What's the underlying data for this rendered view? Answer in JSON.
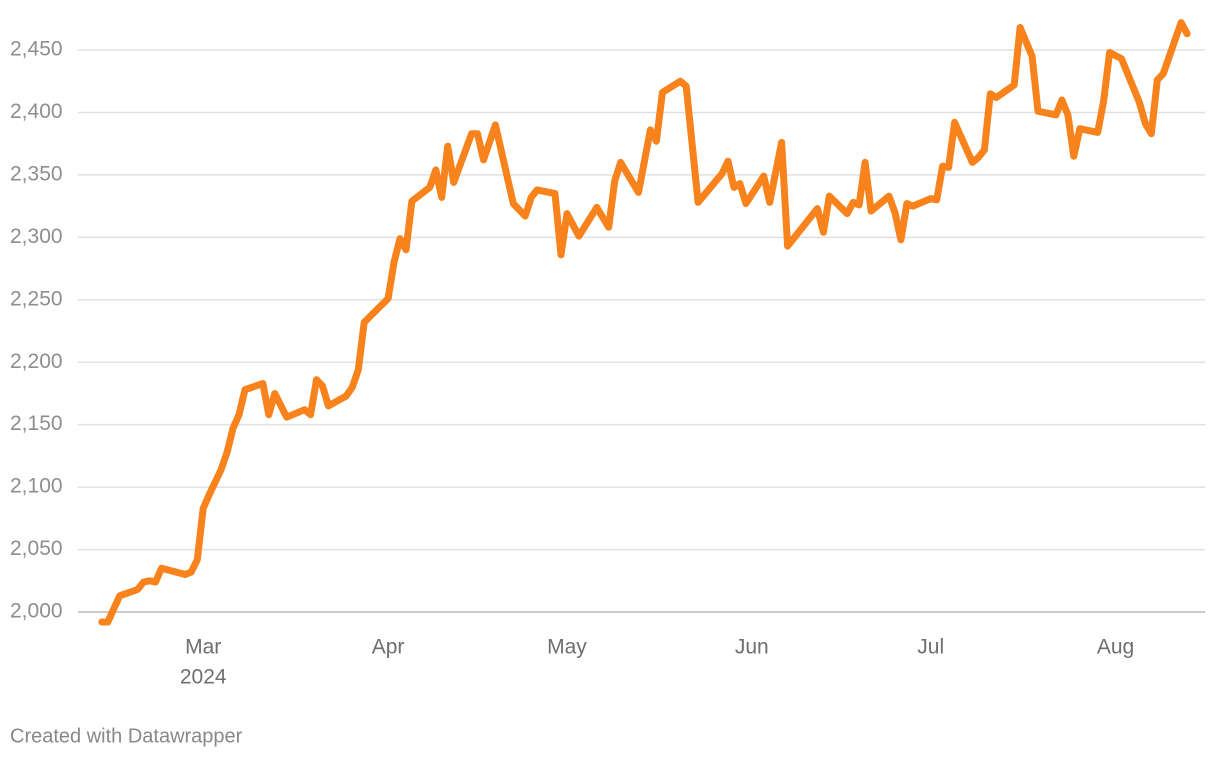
{
  "chart_data": {
    "type": "line",
    "x": [
      44,
      45,
      47,
      50,
      51,
      52,
      53,
      54,
      58,
      59,
      60,
      61,
      62,
      64,
      65,
      66,
      67,
      68,
      71,
      72,
      73,
      75,
      78,
      79,
      80,
      81,
      82,
      85,
      86,
      87,
      88,
      92,
      93,
      94,
      95,
      96,
      99,
      100,
      101,
      102,
      103,
      106,
      107,
      108,
      110,
      113,
      115,
      116,
      117,
      120,
      121,
      122,
      124,
      127,
      129,
      130,
      131,
      134,
      136,
      137,
      138,
      141,
      142,
      144,
      148,
      149,
      150,
      151,
      152,
      155,
      156,
      158,
      159,
      164,
      165,
      166,
      169,
      170,
      171,
      172,
      173,
      176,
      177,
      178,
      179,
      180,
      183,
      184,
      185,
      186,
      187,
      190,
      191,
      192,
      193,
      194,
      197,
      198,
      200,
      201,
      204,
      205,
      206,
      207,
      208,
      211,
      212,
      213,
      215,
      218,
      219,
      220,
      221,
      222,
      225,
      226
    ],
    "values": [
      1992,
      1992,
      2013,
      2018,
      2024,
      2025,
      2024,
      2035,
      2030,
      2032,
      2042,
      2083,
      2094,
      2114,
      2128,
      2147,
      2158,
      2178,
      2183,
      2158,
      2175,
      2156,
      2162,
      2158,
      2186,
      2181,
      2165,
      2173,
      2180,
      2194,
      2232,
      2251,
      2280,
      2299,
      2290,
      2329,
      2340,
      2354,
      2332,
      2373,
      2344,
      2383,
      2383,
      2362,
      2390,
      2327,
      2317,
      2332,
      2338,
      2335,
      2286,
      2319,
      2301,
      2324,
      2308,
      2345,
      2360,
      2336,
      2386,
      2377,
      2416,
      2425,
      2421,
      2328,
      2351,
      2361,
      2340,
      2343,
      2327,
      2349,
      2328,
      2376,
      2293,
      2323,
      2304,
      2333,
      2319,
      2328,
      2326,
      2360,
      2321,
      2333,
      2320,
      2298,
      2327,
      2325,
      2331,
      2330,
      2357,
      2356,
      2392,
      2360,
      2364,
      2370,
      2415,
      2412,
      2422,
      2468,
      2445,
      2401,
      2398,
      2410,
      2398,
      2365,
      2387,
      2384,
      2409,
      2448,
      2443,
      2408,
      2391,
      2383,
      2426,
      2431,
      2472,
      2463
    ],
    "color": "#f8821c",
    "xlim": [
      40,
      229
    ],
    "xticks": [
      {
        "value": 61,
        "label": "Mar"
      },
      {
        "value": 92,
        "label": "Apr"
      },
      {
        "value": 122,
        "label": "May"
      },
      {
        "value": 153,
        "label": "Jun"
      },
      {
        "value": 183,
        "label": "Jul"
      },
      {
        "value": 214,
        "label": "Aug"
      }
    ],
    "x_year_label": "2024",
    "ylim": [
      1992,
      2472
    ],
    "yticks": [
      {
        "value": 2000,
        "label": "2,000"
      },
      {
        "value": 2050,
        "label": "2,050"
      },
      {
        "value": 2100,
        "label": "2,100"
      },
      {
        "value": 2150,
        "label": "2,150"
      },
      {
        "value": 2200,
        "label": "2,200"
      },
      {
        "value": 2250,
        "label": "2,250"
      },
      {
        "value": 2300,
        "label": "2,300"
      },
      {
        "value": 2350,
        "label": "2,350"
      },
      {
        "value": 2400,
        "label": "2,400"
      },
      {
        "value": 2450,
        "label": "2,450"
      }
    ],
    "grid": true,
    "footer": "Created with Datawrapper"
  }
}
